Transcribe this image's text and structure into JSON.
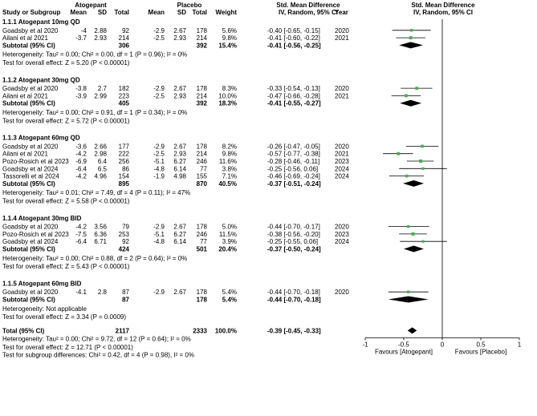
{
  "headers": {
    "group_treatment": "Atogepant",
    "group_control": "Placebo",
    "study": "Study or Subgroup",
    "mean": "Mean",
    "sd": "SD",
    "total": "Total",
    "mean2": "Mean",
    "sd2": "SD",
    "total2": "Total",
    "weight": "Weight",
    "smd_title": "Std. Mean Difference",
    "smd_sub": "IV, Random, 95% CI",
    "year": "Year",
    "plot_title": "Std. Mean Difference",
    "plot_sub": "IV, Random, 95% CI"
  },
  "chart_data": {
    "type": "forest",
    "xlim": [
      -1,
      1
    ],
    "ticks": [
      "-1",
      "-0.5",
      "0",
      "0.5",
      "1"
    ],
    "tick_values": [
      -1,
      -0.5,
      0,
      0.5,
      1
    ],
    "xlabel_left": "Favours [Atogepant]",
    "xlabel_right": "Favours [Placebo]",
    "subgroups": [
      {
        "title": "1.1.1 Atogepant 10mg QD",
        "studies": [
          {
            "study": "Goadsby et al 2020",
            "mean1": "-4",
            "sd1": "2.88",
            "n1": "92",
            "mean2": "-2.9",
            "sd2": "2.67",
            "n2": "178",
            "weight": "5.6%",
            "ci": "-0.40 [-0.65, -0.15]",
            "year": "2020",
            "est": -0.4,
            "lo": -0.65,
            "hi": -0.15
          },
          {
            "study": "Ailani et al 2021",
            "mean1": "-3.7",
            "sd1": "2.93",
            "n1": "214",
            "mean2": "-2.5",
            "sd2": "2.93",
            "n2": "214",
            "weight": "9.8%",
            "ci": "-0.41 [-0.60, -0.22]",
            "year": "2021",
            "est": -0.41,
            "lo": -0.6,
            "hi": -0.22
          }
        ],
        "subtotal": {
          "label": "Subtotal (95% CI)",
          "n1": "306",
          "n2": "392",
          "weight": "15.4%",
          "ci": "-0.41 [-0.56, -0.25]",
          "est": -0.41,
          "lo": -0.56,
          "hi": -0.25
        },
        "heterogeneity": "Heterogeneity: Tau² = 0.00; Chi² = 0.00, df = 1 (P = 0.96); I² = 0%",
        "overall": "Test for overall effect: Z = 5.20 (P < 0.00001)"
      },
      {
        "title": "1.1.2 Atogepant 30mg QD",
        "studies": [
          {
            "study": "Goadsby et al 2020",
            "mean1": "-3.8",
            "sd1": "2.7",
            "n1": "182",
            "mean2": "-2.9",
            "sd2": "2.67",
            "n2": "178",
            "weight": "8.3%",
            "ci": "-0.33 [-0.54, -0.13]",
            "year": "2020",
            "est": -0.33,
            "lo": -0.54,
            "hi": -0.13
          },
          {
            "study": "Ailani et al 2021",
            "mean1": "-3.9",
            "sd1": "2.99",
            "n1": "223",
            "mean2": "-2.5",
            "sd2": "2.93",
            "n2": "214",
            "weight": "10.0%",
            "ci": "-0.47 [-0.66, -0.28]",
            "year": "2021",
            "est": -0.47,
            "lo": -0.66,
            "hi": -0.28
          }
        ],
        "subtotal": {
          "label": "Subtotal (95% CI)",
          "n1": "405",
          "n2": "392",
          "weight": "18.3%",
          "ci": "-0.41 [-0.55, -0.27]",
          "est": -0.41,
          "lo": -0.55,
          "hi": -0.27
        },
        "heterogeneity": "Heterogeneity: Tau² = 0.00; Chi² = 0.91, df = 1 (P = 0.34); I² = 0%",
        "overall": "Test for overall effect: Z = 5.72 (P < 0.00001)"
      },
      {
        "title": "1.1.3 Atogepant 60mg QD",
        "studies": [
          {
            "study": "Goadsby et al 2020",
            "mean1": "-3.6",
            "sd1": "2.66",
            "n1": "177",
            "mean2": "-2.9",
            "sd2": "2.67",
            "n2": "178",
            "weight": "8.2%",
            "ci": "-0.26 [-0.47, -0.05]",
            "year": "2020",
            "est": -0.26,
            "lo": -0.47,
            "hi": -0.05
          },
          {
            "study": "Ailani et al 2021",
            "mean1": "-4.2",
            "sd1": "2.98",
            "n1": "222",
            "mean2": "-2.5",
            "sd2": "2.93",
            "n2": "214",
            "weight": "9.8%",
            "ci": "-0.57 [-0.77, -0.38]",
            "year": "2021",
            "est": -0.57,
            "lo": -0.77,
            "hi": -0.38
          },
          {
            "study": "Pozo-Rosich et al 2023",
            "mean1": "-6.9",
            "sd1": "6.4",
            "n1": "256",
            "mean2": "-5.1",
            "sd2": "6.27",
            "n2": "246",
            "weight": "11.6%",
            "ci": "-0.28 [-0.46, -0.11]",
            "year": "2023",
            "est": -0.28,
            "lo": -0.46,
            "hi": -0.11
          },
          {
            "study": "Goadsby et al 2024",
            "mean1": "-6.4",
            "sd1": "6.5",
            "n1": "86",
            "mean2": "-4.8",
            "sd2": "6.14",
            "n2": "77",
            "weight": "3.8%",
            "ci": "-0.25 [-0.56, 0.06]",
            "year": "2024",
            "est": -0.25,
            "lo": -0.56,
            "hi": 0.06
          },
          {
            "study": "Tassorelli et al 2024",
            "mean1": "-4.2",
            "sd1": "4.96",
            "n1": "154",
            "mean2": "-1.9",
            "sd2": "4.98",
            "n2": "155",
            "weight": "7.1%",
            "ci": "-0.46 [-0.69, -0.24]",
            "year": "2024",
            "est": -0.46,
            "lo": -0.69,
            "hi": -0.24
          }
        ],
        "subtotal": {
          "label": "Subtotal (95% CI)",
          "n1": "895",
          "n2": "870",
          "weight": "40.5%",
          "ci": "-0.37 [-0.51, -0.24]",
          "est": -0.37,
          "lo": -0.51,
          "hi": -0.24
        },
        "heterogeneity": "Heterogeneity: Tau² = 0.01; Chi² = 7.49, df = 4 (P = 0.11); I² = 47%",
        "overall": "Test for overall effect: Z = 5.58 (P < 0.00001)"
      },
      {
        "title": "1.1.4 Atogepant 30mg BID",
        "studies": [
          {
            "study": "Goadsby et al 2020",
            "mean1": "-4.2",
            "sd1": "3.56",
            "n1": "79",
            "mean2": "-2.9",
            "sd2": "2.67",
            "n2": "178",
            "weight": "5.0%",
            "ci": "-0.44 [-0.70, -0.17]",
            "year": "2020",
            "est": -0.44,
            "lo": -0.7,
            "hi": -0.17
          },
          {
            "study": "Pozo-Rosich et al 2023",
            "mean1": "-7.5",
            "sd1": "6.36",
            "n1": "253",
            "mean2": "-5.1",
            "sd2": "6.27",
            "n2": "246",
            "weight": "11.5%",
            "ci": "-0.38 [-0.56, -0.20]",
            "year": "2023",
            "est": -0.38,
            "lo": -0.56,
            "hi": -0.2
          },
          {
            "study": "Goadsby et al 2024",
            "mean1": "-6.4",
            "sd1": "6.71",
            "n1": "92",
            "mean2": "-4.8",
            "sd2": "6.14",
            "n2": "77",
            "weight": "3.9%",
            "ci": "-0.25 [-0.55, 0.06]",
            "year": "2024",
            "est": -0.25,
            "lo": -0.55,
            "hi": 0.06
          }
        ],
        "subtotal": {
          "label": "Subtotal (95% CI)",
          "n1": "424",
          "n2": "501",
          "weight": "20.4%",
          "ci": "-0.37 [-0.50, -0.24]",
          "est": -0.37,
          "lo": -0.5,
          "hi": -0.24
        },
        "heterogeneity": "Heterogeneity: Tau² = 0.00; Chi² = 0.88, df = 2 (P = 0.64); I² = 0%",
        "overall": "Test for overall effect: Z = 5.43 (P < 0.00001)"
      },
      {
        "title": "1.1.5 Atogepant 60mg BID",
        "studies": [
          {
            "study": "Goadsby et al 2020",
            "mean1": "-4.1",
            "sd1": "2.8",
            "n1": "87",
            "mean2": "-2.9",
            "sd2": "2.67",
            "n2": "178",
            "weight": "5.4%",
            "ci": "-0.44 [-0.70, -0.18]",
            "year": "2020",
            "est": -0.44,
            "lo": -0.7,
            "hi": -0.18
          }
        ],
        "subtotal": {
          "label": "Subtotal (95% CI)",
          "n1": "87",
          "n2": "178",
          "weight": "5.4%",
          "ci": "-0.44 [-0.70, -0.18]",
          "est": -0.44,
          "lo": -0.7,
          "hi": -0.18
        },
        "heterogeneity": "Heterogeneity: Not applicable",
        "overall": "Test for overall effect: Z = 3.34 (P = 0.0009)"
      }
    ],
    "total": {
      "label": "Total (95% CI)",
      "n1": "2117",
      "n2": "2333",
      "weight": "100.0%",
      "ci": "-0.39 [-0.45, -0.33]",
      "est": -0.39,
      "lo": -0.45,
      "hi": -0.33
    },
    "total_heterogeneity": "Heterogeneity: Tau² = 0.00; Chi² = 9.72, df = 12 (P = 0.64); I² = 0%",
    "total_overall": "Test for overall effect: Z = 12.71 (P < 0.00001)",
    "subgroup_test": "Test for subgroup differences: Chi² = 0.42, df = 4 (P = 0.98), I² = 0%"
  },
  "colors": {
    "study_marker": "#4caf50",
    "diamond": "#000000",
    "line": "#000000"
  }
}
